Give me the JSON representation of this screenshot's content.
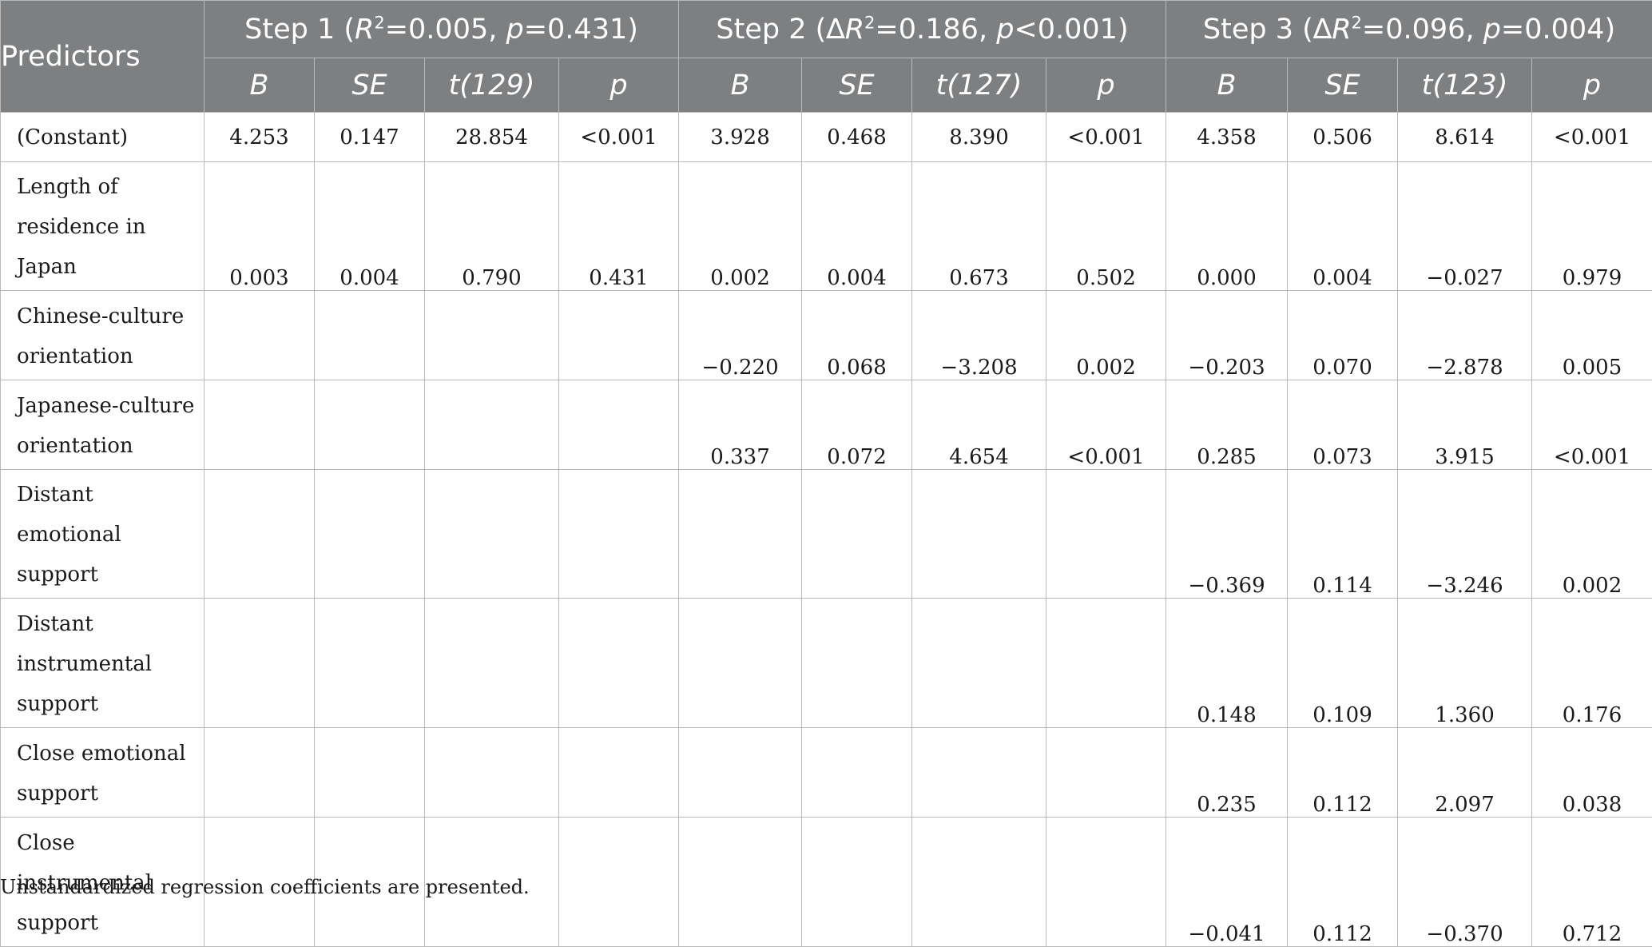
{
  "table": {
    "predictors_header": "Predictors",
    "steps": [
      {
        "label": "Step 1",
        "stat": "R",
        "stat_sup": "2",
        "stat_value": "=0.005, ",
        "p_label": "p",
        "p_value": "=0.431"
      },
      {
        "label": "Step 2",
        "stat": "∆R",
        "stat_sup": "2",
        "stat_value": "=0.186, ",
        "p_label": "p",
        "p_value": "<0.001"
      },
      {
        "label": "Step 3",
        "stat": "∆R",
        "stat_sup": "2",
        "stat_value": "=0.096, ",
        "p_label": "p",
        "p_value": "=0.004"
      }
    ],
    "subheaders": [
      "B",
      "SE",
      "t(129)",
      "p",
      "B",
      "SE",
      "t(127)",
      "p",
      "B",
      "SE",
      "t(123)",
      "p"
    ],
    "rows": [
      {
        "predictor": "(Constant)",
        "values": [
          "4.253",
          "0.147",
          "28.854",
          "<0.001",
          "3.928",
          "0.468",
          "8.390",
          "<0.001",
          "4.358",
          "0.506",
          "8.614",
          "<0.001"
        ]
      },
      {
        "predictor": "Length of residence in Japan",
        "values": [
          "0.003",
          "0.004",
          "0.790",
          "0.431",
          "0.002",
          "0.004",
          "0.673",
          "0.502",
          "0.000",
          "0.004",
          "−0.027",
          "0.979"
        ]
      },
      {
        "predictor": "Chinese-culture orientation",
        "values": [
          "",
          "",
          "",
          "",
          "−0.220",
          "0.068",
          "−3.208",
          "0.002",
          "−0.203",
          "0.070",
          "−2.878",
          "0.005"
        ]
      },
      {
        "predictor": "Japanese-culture orientation",
        "values": [
          "",
          "",
          "",
          "",
          "0.337",
          "0.072",
          "4.654",
          "<0.001",
          "0.285",
          "0.073",
          "3.915",
          "<0.001"
        ]
      },
      {
        "predictor": "Distant emotional support",
        "values": [
          "",
          "",
          "",
          "",
          "",
          "",
          "",
          "",
          "−0.369",
          "0.114",
          "−3.246",
          "0.002"
        ]
      },
      {
        "predictor": "Distant instrumental support",
        "values": [
          "",
          "",
          "",
          "",
          "",
          "",
          "",
          "",
          "0.148",
          "0.109",
          "1.360",
          "0.176"
        ]
      },
      {
        "predictor": "Close emotional support",
        "values": [
          "",
          "",
          "",
          "",
          "",
          "",
          "",
          "",
          "0.235",
          "0.112",
          "2.097",
          "0.038"
        ]
      },
      {
        "predictor": "Close instrumental support",
        "values": [
          "",
          "",
          "",
          "",
          "",
          "",
          "",
          "",
          "−0.041",
          "0.112",
          "−0.370",
          "0.712"
        ]
      }
    ],
    "note": "Unstandardized regression coefficients are presented.",
    "colors": {
      "header_bg": "#7e7f81",
      "header_text": "#ffffff",
      "border": "#b9b9b9"
    }
  }
}
